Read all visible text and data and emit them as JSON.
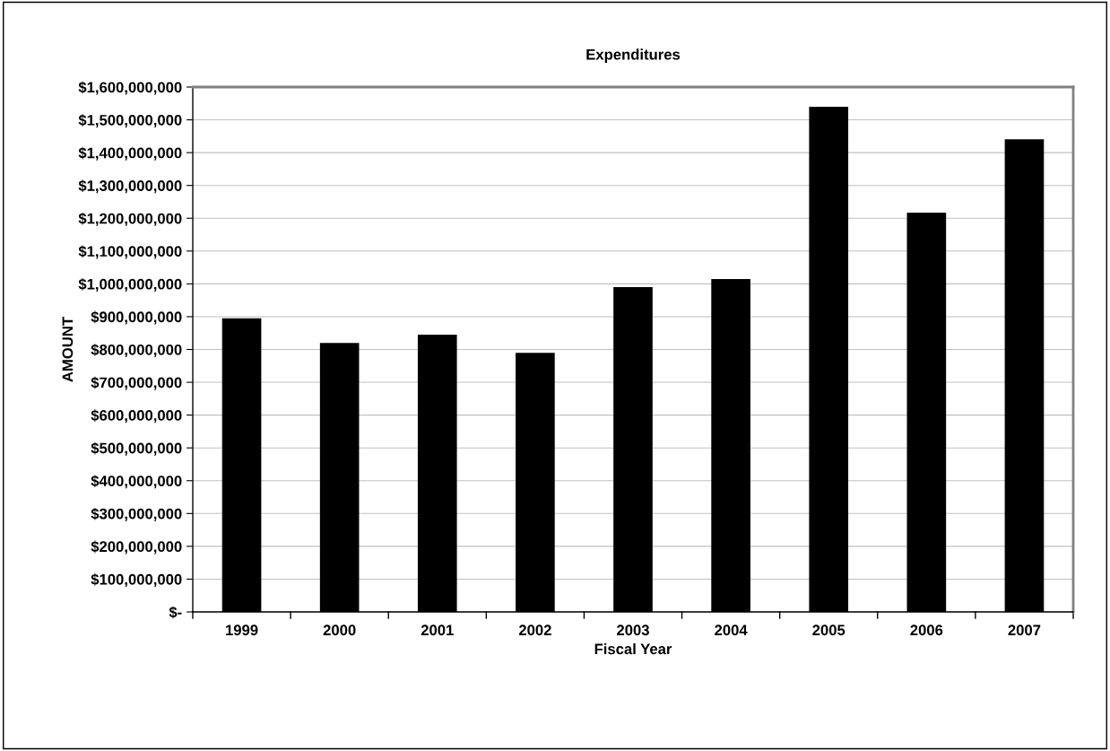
{
  "chart_data": {
    "type": "bar",
    "title": "Expenditures",
    "xlabel": "Fiscal Year",
    "ylabel": "AMOUNT",
    "categories": [
      "1999",
      "2000",
      "2001",
      "2002",
      "2003",
      "2004",
      "2005",
      "2006",
      "2007"
    ],
    "values": [
      895000000,
      820000000,
      845000000,
      790000000,
      990000000,
      1015000000,
      1540000000,
      1217000000,
      1441000000
    ],
    "color": "#000000",
    "ylim": [
      0,
      1600000000
    ],
    "yticks": [
      {
        "value": 0,
        "label": "$-"
      },
      {
        "value": 100000000,
        "label": "$100,000,000"
      },
      {
        "value": 200000000,
        "label": "$200,000,000"
      },
      {
        "value": 300000000,
        "label": "$300,000,000"
      },
      {
        "value": 400000000,
        "label": "$400,000,000"
      },
      {
        "value": 500000000,
        "label": "$500,000,000"
      },
      {
        "value": 600000000,
        "label": "$600,000,000"
      },
      {
        "value": 700000000,
        "label": "$700,000,000"
      },
      {
        "value": 800000000,
        "label": "$800,000,000"
      },
      {
        "value": 900000000,
        "label": "$900,000,000"
      },
      {
        "value": 1000000000,
        "label": "$1,000,000,000"
      },
      {
        "value": 1100000000,
        "label": "$1,100,000,000"
      },
      {
        "value": 1200000000,
        "label": "$1,200,000,000"
      },
      {
        "value": 1300000000,
        "label": "$1,300,000,000"
      },
      {
        "value": 1400000000,
        "label": "$1,400,000,000"
      },
      {
        "value": 1500000000,
        "label": "$1,500,000,000"
      },
      {
        "value": 1600000000,
        "label": "$1,600,000,000"
      }
    ],
    "grid": "y",
    "legend": false
  }
}
